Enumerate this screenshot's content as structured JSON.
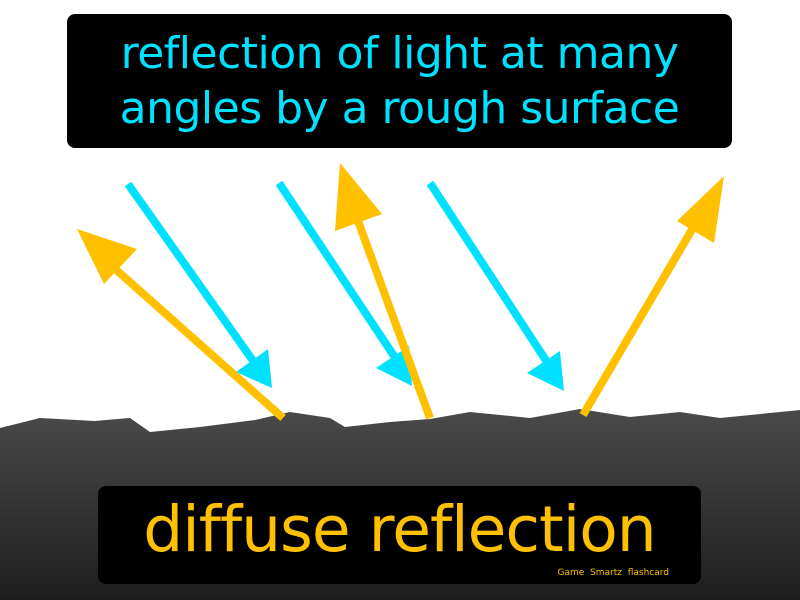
{
  "definition": {
    "line1": "reflection of light at many",
    "line2": "angles by a rough surface"
  },
  "term": "diffuse reflection",
  "watermark": "Game  Smartz  flashcard",
  "colors": {
    "background": "#ffffff",
    "label_box": "#000000",
    "definition_text": "#00e1ff",
    "term_text": "#ffc000",
    "incident_ray": "#00e1ff",
    "reflected_ray": "#ffc000",
    "rough_surface": "#3a3a3a"
  },
  "icons": {
    "incident_ray": "cyan-arrow",
    "reflected_ray": "orange-arrow"
  }
}
